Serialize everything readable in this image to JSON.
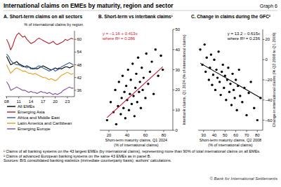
{
  "title": "International claims on EMEs by maturity, region and sector",
  "graph_label": "Graph 6",
  "footnotes": [
    "¹ Claims of all banking systems on the 43 largest EMEs (by international claims), representing more than 90% of total international claims on all EMEs.",
    "² Claims of advanced European banking systems on the same 43 EMEs as in panel B."
  ],
  "sources": "Sources: BIS consolidated banking statistics (immediate counterparty basis); authors' calculations.",
  "copyright": "© Bank for International Settlements",
  "chart_data": [
    {
      "type": "line",
      "title": "A. Short-term claims on all sectors",
      "subtitle": "% of international claims by region",
      "x": [
        2008,
        2008.5,
        2009,
        2009.5,
        2010,
        2010.5,
        2011,
        2011.5,
        2012,
        2012.5,
        2013,
        2013.5,
        2014,
        2014.5,
        2015,
        2015.5,
        2016,
        2016.5,
        2017,
        2017.5,
        2018,
        2018.5,
        2019,
        2019.5,
        2020,
        2020.5,
        2021,
        2021.5,
        2022,
        2022.5,
        2023,
        2023.5,
        2024,
        2024.5
      ],
      "xlim": [
        2007.75,
        2024.75
      ],
      "xticks": [
        {
          "value": 2008,
          "label": "08"
        },
        {
          "value": 2011,
          "label": "11"
        },
        {
          "value": 2014,
          "label": "14"
        },
        {
          "value": 2017,
          "label": "17"
        },
        {
          "value": 2020,
          "label": "20"
        },
        {
          "value": 2023,
          "label": "23"
        }
      ],
      "ylim": [
        33,
        64
      ],
      "yticks": [
        36,
        42,
        48,
        54,
        60
      ],
      "legend": "bottom",
      "series": [
        {
          "name": "All EMEs",
          "color": "#000000",
          "values": [
            52,
            50,
            48,
            48.5,
            49,
            49.5,
            48.5,
            48,
            47.5,
            47,
            47.5,
            47,
            46.5,
            46,
            46.5,
            46,
            46.5,
            47,
            47.5,
            47,
            46.5,
            46,
            45.5,
            46,
            46.5,
            46,
            46.5,
            46,
            46.5,
            47,
            47,
            46.5,
            47,
            47.5
          ]
        },
        {
          "name": "Emerging Asia",
          "color": "#b3202a",
          "values": [
            60,
            58,
            55,
            57,
            60,
            62,
            63,
            62,
            61,
            61.5,
            60,
            59,
            58,
            58.5,
            59,
            60,
            60.5,
            60,
            59.5,
            59,
            58.5,
            58,
            58.5,
            59,
            58,
            57.5,
            58,
            58.5,
            59,
            60,
            59.5,
            60,
            60.5,
            60
          ]
        },
        {
          "name": "Africa and Middle East",
          "color": "#2f5f98",
          "values": [
            53,
            52,
            50,
            49,
            48.5,
            48,
            48,
            47.5,
            47,
            47,
            46.5,
            47,
            46,
            46.5,
            46,
            47,
            47.5,
            47,
            46.5,
            46,
            45.5,
            45,
            45.5,
            46,
            45,
            45.5,
            46,
            47,
            47.5,
            48,
            48.5,
            49,
            48.5,
            48
          ]
        },
        {
          "name": "Latin America and Caribbean",
          "color": "#e3a21a",
          "values": [
            48,
            46,
            44,
            45,
            46,
            46.5,
            46,
            45.5,
            45,
            45,
            44.5,
            44,
            44,
            43.5,
            44,
            43.5,
            43,
            42.5,
            42,
            42,
            41.5,
            41,
            41.5,
            41,
            40.5,
            41,
            42,
            43,
            43.5,
            44,
            44.5,
            44,
            43.5,
            44
          ]
        },
        {
          "name": "Emerging Europe",
          "color": "#7b4f9d",
          "values": [
            40,
            38.5,
            36,
            36.5,
            37,
            37.5,
            37,
            36.5,
            36,
            36,
            35.5,
            35,
            35.5,
            35,
            35,
            34.5,
            35,
            35.5,
            35,
            35,
            34.5,
            35,
            34.5,
            34,
            34.5,
            34,
            34.5,
            35,
            36,
            36.5,
            37,
            37.5,
            37,
            37
          ]
        }
      ]
    },
    {
      "type": "scatter",
      "title": "B. Short-term vs interbank claims¹",
      "x_label": [
        "Short-term maturity claims, Q1 2024",
        "(% of international claims)"
      ],
      "y_label": "Interbank claims, Q1 2024 (% of international claims)",
      "annotation": [
        "y = –1.16 + 0.413x",
        "where R² = 0.286"
      ],
      "trend": {
        "intercept": -1.16,
        "slope": 0.413,
        "color": "#c8102e"
      },
      "color": "#000000",
      "marker": "circle",
      "x": [
        18,
        22,
        25,
        27,
        28,
        30,
        31,
        33,
        34,
        35,
        36,
        37,
        38,
        39,
        40,
        41,
        42,
        43,
        44,
        45,
        46,
        47,
        48,
        49,
        50,
        51,
        52,
        53,
        54,
        55,
        56,
        57,
        58,
        60,
        61,
        63,
        65,
        67,
        69,
        71,
        74,
        77,
        79
      ],
      "values": [
        5,
        14,
        9,
        20,
        3,
        12,
        24,
        8,
        16,
        27,
        11,
        19,
        6,
        22,
        15,
        30,
        10,
        18,
        25,
        13,
        33,
        17,
        7,
        21,
        28,
        14,
        36,
        19,
        24,
        11,
        31,
        20,
        26,
        16,
        38,
        23,
        29,
        34,
        18,
        40,
        27,
        37,
        30
      ],
      "xlim": [
        10,
        90
      ],
      "xticks": [
        20,
        40,
        60,
        80
      ],
      "ylim": [
        0,
        50
      ],
      "yticks": [
        0,
        10,
        20,
        30,
        40,
        50
      ]
    },
    {
      "type": "scatter",
      "title": "C. Change in claims during the GFC²",
      "x_label": [
        "Short-term maturity claims, Q2 2008",
        "(% of international claims)"
      ],
      "y_label": "Change in international claims (% Q2 2008 to Q1 2009)",
      "annotation": [
        "y = 13.2 – 0.615x",
        "where R² = 0.236"
      ],
      "trend": {
        "intercept": 13.2,
        "slope": -0.615,
        "color": "#000000"
      },
      "color": "#000000",
      "marker": "circle",
      "x": [
        27,
        29,
        31,
        32,
        33,
        35,
        36,
        37,
        38,
        39,
        40,
        41,
        42,
        43,
        44,
        45,
        46,
        47,
        48,
        49,
        50,
        51,
        52,
        53,
        54,
        55,
        56,
        57,
        58,
        59,
        60,
        61,
        62,
        63,
        64,
        66,
        68,
        70,
        72,
        74,
        77,
        80,
        83
      ],
      "values": [
        10,
        -5,
        15,
        -12,
        2,
        -20,
        -8,
        5,
        -25,
        -15,
        0,
        -30,
        -10,
        -18,
        8,
        -22,
        -35,
        -12,
        -5,
        -28,
        -16,
        -40,
        -20,
        -8,
        -32,
        -24,
        -45,
        -14,
        -30,
        -38,
        -20,
        -50,
        -26,
        -10,
        -36,
        -42,
        -28,
        -55,
        -33,
        -22,
        -48,
        -60,
        -38
      ],
      "xlim": [
        25,
        85
      ],
      "xticks": [
        30,
        40,
        50,
        60,
        70,
        80
      ],
      "ylim": [
        -70,
        30
      ],
      "yticks": [
        {
          "value": -60,
          "label": "–60"
        },
        {
          "value": -40,
          "label": "–40"
        },
        {
          "value": -20,
          "label": "–20"
        },
        0,
        20
      ]
    }
  ]
}
